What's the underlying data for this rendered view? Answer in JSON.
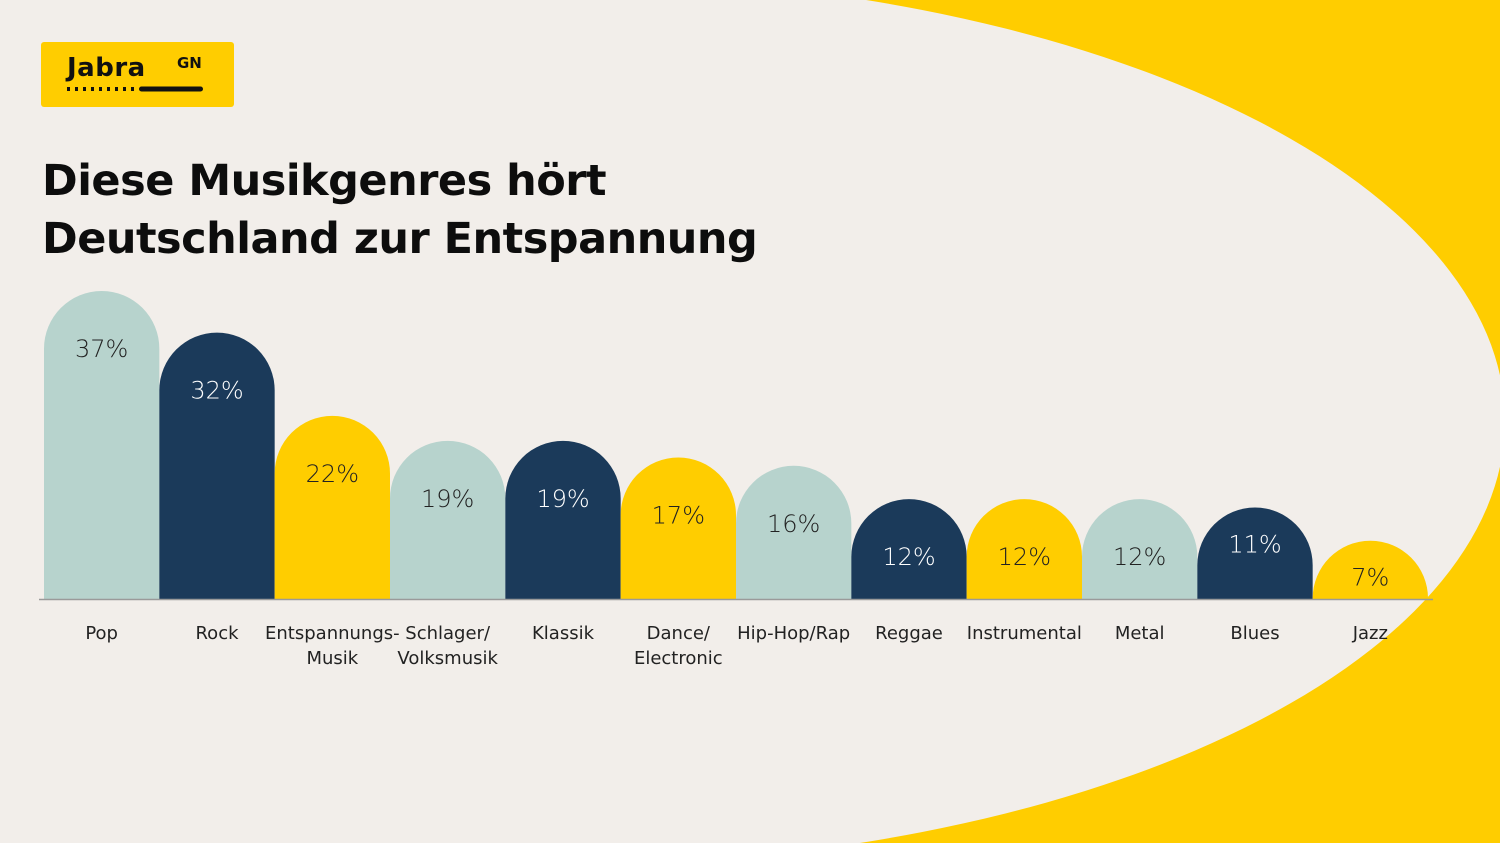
{
  "brand": {
    "name": "Jabra",
    "suffix": "GN",
    "colors": {
      "yellow": "#ffcd00",
      "navy": "#1b3a5a",
      "mint": "#b7d3cd",
      "background": "#f2eeea"
    }
  },
  "title": {
    "line1": "Diese Musikgenres hört",
    "line2": "Deutschland zur Entspannung"
  },
  "chart_data": {
    "type": "bar",
    "title": "Diese Musikgenres hört Deutschland zur Entspannung",
    "xlabel": "",
    "ylabel": "",
    "unit": "%",
    "ylim": [
      0,
      37
    ],
    "grid": false,
    "legend": "none",
    "categories": [
      [
        "Pop"
      ],
      [
        "Rock"
      ],
      [
        "Entspannungs-",
        "Musik"
      ],
      [
        "Schlager/",
        "Volksmusik"
      ],
      [
        "Klassik"
      ],
      [
        "Dance/",
        "Electronic"
      ],
      [
        "Hip-Hop/Rap"
      ],
      [
        "Reggae"
      ],
      [
        "Instrumental"
      ],
      [
        "Metal"
      ],
      [
        "Blues"
      ],
      [
        "Jazz"
      ]
    ],
    "values": [
      37,
      32,
      22,
      19,
      19,
      17,
      16,
      12,
      12,
      12,
      11,
      7
    ],
    "value_labels": [
      "37%",
      "32%",
      "22%",
      "19%",
      "19%",
      "17%",
      "16%",
      "12%",
      "12%",
      "12%",
      "11%",
      "7%"
    ],
    "bar_colors": [
      "#b7d3cd",
      "#1b3a5a",
      "#ffcd00",
      "#b7d3cd",
      "#1b3a5a",
      "#ffcd00",
      "#b7d3cd",
      "#1b3a5a",
      "#ffcd00",
      "#b7d3cd",
      "#1b3a5a",
      "#ffcd00"
    ],
    "label_colors": [
      "#222222",
      "#ffffff",
      "#222222",
      "#222222",
      "#ffffff",
      "#222222",
      "#222222",
      "#ffffff",
      "#222222",
      "#222222",
      "#ffffff",
      "#222222"
    ]
  }
}
